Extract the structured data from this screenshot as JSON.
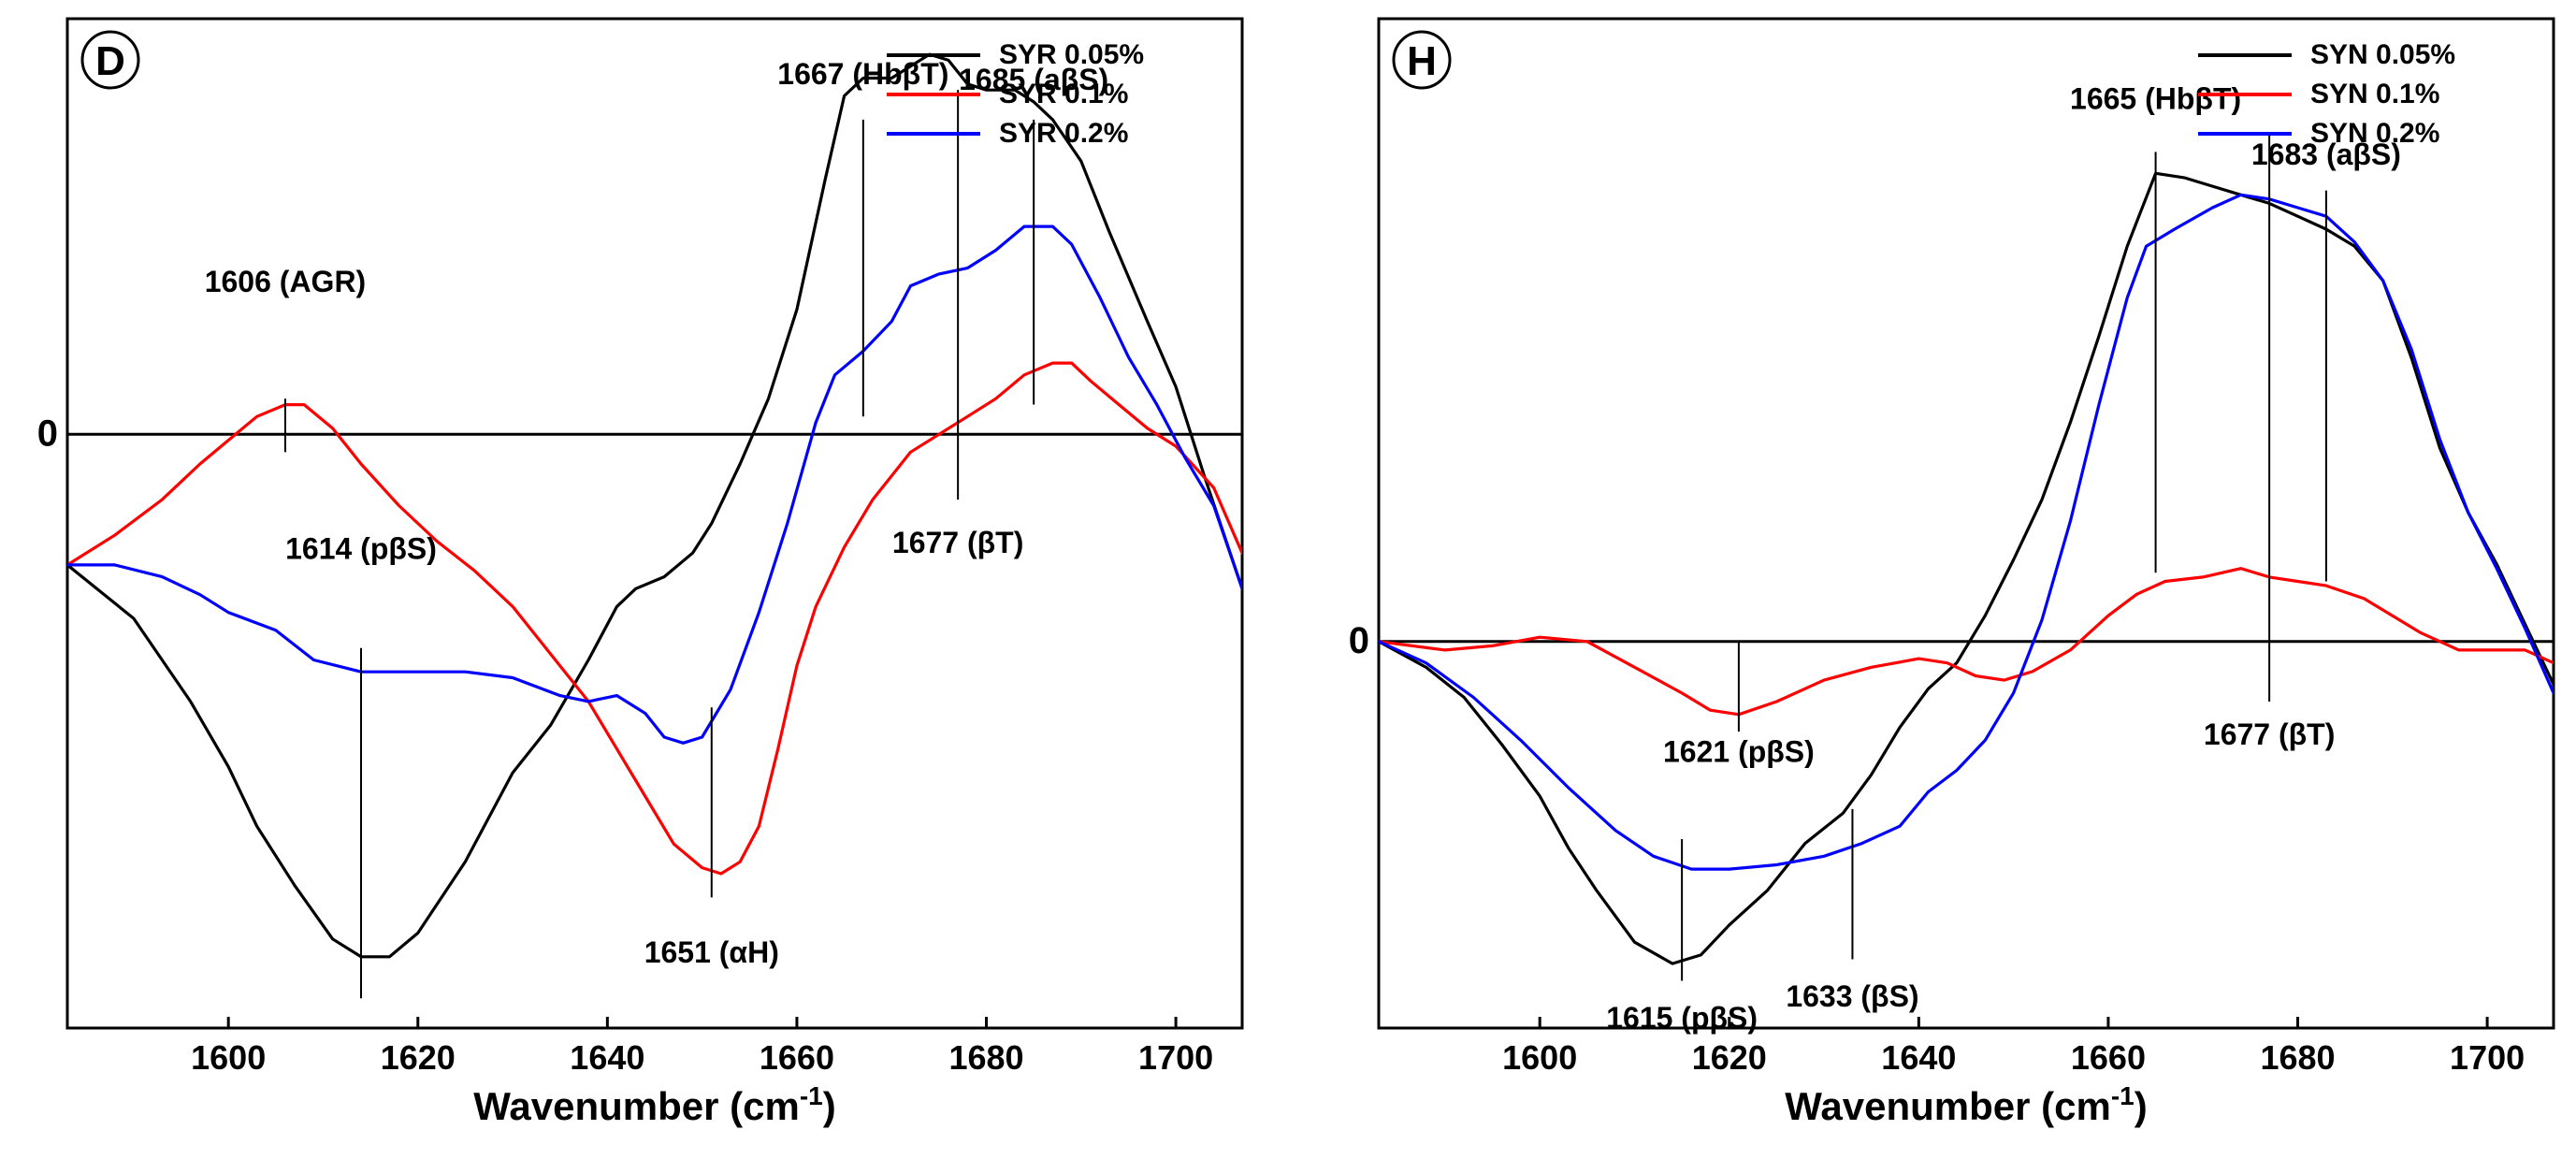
{
  "chart_data": [
    {
      "type": "line",
      "panel_label": "D",
      "xlabel": "Wavenumber (cm",
      "xlabel_sup": "-1",
      "xlabel_close": ")",
      "xlim": [
        1583,
        1707
      ],
      "ylim": [
        -1.0,
        0.7
      ],
      "xticks": [
        1600,
        1620,
        1640,
        1660,
        1680,
        1700
      ],
      "zero_label": "0",
      "legend_position": "top-right",
      "series": [
        {
          "name": "SYR 0.05%",
          "color": "#000000",
          "points": [
            [
              1583,
              -0.22
            ],
            [
              1590,
              -0.31
            ],
            [
              1596,
              -0.45
            ],
            [
              1600,
              -0.56
            ],
            [
              1603,
              -0.66
            ],
            [
              1607,
              -0.76
            ],
            [
              1611,
              -0.85
            ],
            [
              1614,
              -0.88
            ],
            [
              1617,
              -0.88
            ],
            [
              1620,
              -0.84
            ],
            [
              1625,
              -0.72
            ],
            [
              1630,
              -0.57
            ],
            [
              1634,
              -0.49
            ],
            [
              1638,
              -0.38
            ],
            [
              1641,
              -0.29
            ],
            [
              1643,
              -0.26
            ],
            [
              1646,
              -0.24
            ],
            [
              1649,
              -0.2
            ],
            [
              1651,
              -0.15
            ],
            [
              1654,
              -0.05
            ],
            [
              1657,
              0.06
            ],
            [
              1660,
              0.21
            ],
            [
              1663,
              0.43
            ],
            [
              1665,
              0.57
            ],
            [
              1667,
              0.6
            ],
            [
              1670,
              0.6
            ],
            [
              1672,
              0.62
            ],
            [
              1674,
              0.64
            ],
            [
              1676,
              0.63
            ],
            [
              1678,
              0.59
            ],
            [
              1680,
              0.58
            ],
            [
              1683,
              0.58
            ],
            [
              1685,
              0.56
            ],
            [
              1687,
              0.53
            ],
            [
              1690,
              0.46
            ],
            [
              1693,
              0.34
            ],
            [
              1697,
              0.19
            ],
            [
              1700,
              0.08
            ],
            [
              1703,
              -0.07
            ],
            [
              1707,
              -0.26
            ]
          ]
        },
        {
          "name": "SYR 0.1%",
          "color": "#ff0000",
          "points": [
            [
              1583,
              -0.22
            ],
            [
              1588,
              -0.17
            ],
            [
              1593,
              -0.11
            ],
            [
              1597,
              -0.05
            ],
            [
              1600,
              -0.01
            ],
            [
              1603,
              0.03
            ],
            [
              1606,
              0.05
            ],
            [
              1608,
              0.05
            ],
            [
              1611,
              0.01
            ],
            [
              1614,
              -0.05
            ],
            [
              1618,
              -0.12
            ],
            [
              1622,
              -0.18
            ],
            [
              1626,
              -0.23
            ],
            [
              1630,
              -0.29
            ],
            [
              1634,
              -0.37
            ],
            [
              1638,
              -0.45
            ],
            [
              1641,
              -0.53
            ],
            [
              1644,
              -0.61
            ],
            [
              1647,
              -0.69
            ],
            [
              1650,
              -0.73
            ],
            [
              1652,
              -0.74
            ],
            [
              1654,
              -0.72
            ],
            [
              1656,
              -0.66
            ],
            [
              1658,
              -0.53
            ],
            [
              1660,
              -0.39
            ],
            [
              1662,
              -0.29
            ],
            [
              1665,
              -0.19
            ],
            [
              1668,
              -0.11
            ],
            [
              1672,
              -0.03
            ],
            [
              1675,
              0.0
            ],
            [
              1678,
              0.03
            ],
            [
              1681,
              0.06
            ],
            [
              1684,
              0.1
            ],
            [
              1687,
              0.12
            ],
            [
              1689,
              0.12
            ],
            [
              1691,
              0.09
            ],
            [
              1694,
              0.05
            ],
            [
              1697,
              0.01
            ],
            [
              1700,
              -0.02
            ],
            [
              1704,
              -0.09
            ],
            [
              1707,
              -0.2
            ]
          ]
        },
        {
          "name": "SYR 0.2%",
          "color": "#0000ff",
          "points": [
            [
              1583,
              -0.22
            ],
            [
              1588,
              -0.22
            ],
            [
              1593,
              -0.24
            ],
            [
              1597,
              -0.27
            ],
            [
              1600,
              -0.3
            ],
            [
              1605,
              -0.33
            ],
            [
              1609,
              -0.38
            ],
            [
              1614,
              -0.4
            ],
            [
              1620,
              -0.4
            ],
            [
              1625,
              -0.4
            ],
            [
              1630,
              -0.41
            ],
            [
              1635,
              -0.44
            ],
            [
              1638,
              -0.45
            ],
            [
              1641,
              -0.44
            ],
            [
              1644,
              -0.47
            ],
            [
              1646,
              -0.51
            ],
            [
              1648,
              -0.52
            ],
            [
              1650,
              -0.51
            ],
            [
              1653,
              -0.43
            ],
            [
              1656,
              -0.3
            ],
            [
              1659,
              -0.15
            ],
            [
              1662,
              0.02
            ],
            [
              1664,
              0.1
            ],
            [
              1667,
              0.14
            ],
            [
              1670,
              0.19
            ],
            [
              1672,
              0.25
            ],
            [
              1675,
              0.27
            ],
            [
              1678,
              0.28
            ],
            [
              1681,
              0.31
            ],
            [
              1684,
              0.35
            ],
            [
              1687,
              0.35
            ],
            [
              1689,
              0.32
            ],
            [
              1692,
              0.23
            ],
            [
              1695,
              0.13
            ],
            [
              1698,
              0.05
            ],
            [
              1701,
              -0.04
            ],
            [
              1704,
              -0.12
            ],
            [
              1707,
              -0.26
            ]
          ]
        }
      ],
      "annotations": [
        {
          "text": "1606 (AGR)",
          "x": 1606,
          "y_label": 0.24,
          "y1": -0.03,
          "y2": 0.06
        },
        {
          "text": "1614 (pβS)",
          "x": 1614,
          "y_label": -0.21,
          "y1": -0.95,
          "y2": -0.36
        },
        {
          "text": "1651 (αH)",
          "x": 1651,
          "y_label": -0.89,
          "y1": -0.78,
          "y2": -0.46
        },
        {
          "text": "1667 (HbβT)",
          "x": 1667,
          "y_label": 0.59,
          "y1": 0.03,
          "y2": 0.53
        },
        {
          "text": "1677 (βT)",
          "x": 1677,
          "y_label": -0.2,
          "y1": -0.11,
          "y2": 0.58
        },
        {
          "text": "1685 (aβS)",
          "x": 1685,
          "y_label": 0.58,
          "y1": 0.05,
          "y2": 0.53
        }
      ],
      "legend": [
        "SYR 0.05%",
        "SYR 0.1%",
        "SYR 0.2%"
      ]
    },
    {
      "type": "line",
      "panel_label": "H",
      "xlabel": "Wavenumber (cm",
      "xlabel_sup": "-1",
      "xlabel_close": ")",
      "xlim": [
        1583,
        1707
      ],
      "ylim": [
        -0.9,
        1.45
      ],
      "xticks": [
        1600,
        1620,
        1640,
        1660,
        1680,
        1700
      ],
      "zero_label": "0",
      "legend_position": "top-right",
      "series": [
        {
          "name": "SYN 0.05%",
          "color": "#000000",
          "points": [
            [
              1583,
              0.0
            ],
            [
              1588,
              -0.06
            ],
            [
              1592,
              -0.13
            ],
            [
              1596,
              -0.24
            ],
            [
              1600,
              -0.36
            ],
            [
              1603,
              -0.48
            ],
            [
              1606,
              -0.58
            ],
            [
              1610,
              -0.7
            ],
            [
              1614,
              -0.75
            ],
            [
              1617,
              -0.73
            ],
            [
              1620,
              -0.66
            ],
            [
              1624,
              -0.58
            ],
            [
              1628,
              -0.47
            ],
            [
              1632,
              -0.4
            ],
            [
              1635,
              -0.31
            ],
            [
              1638,
              -0.2
            ],
            [
              1641,
              -0.11
            ],
            [
              1644,
              -0.05
            ],
            [
              1647,
              0.06
            ],
            [
              1650,
              0.19
            ],
            [
              1653,
              0.33
            ],
            [
              1656,
              0.51
            ],
            [
              1659,
              0.71
            ],
            [
              1662,
              0.92
            ],
            [
              1665,
              1.09
            ],
            [
              1668,
              1.08
            ],
            [
              1671,
              1.06
            ],
            [
              1674,
              1.04
            ],
            [
              1677,
              1.02
            ],
            [
              1680,
              0.99
            ],
            [
              1683,
              0.96
            ],
            [
              1686,
              0.92
            ],
            [
              1689,
              0.84
            ],
            [
              1692,
              0.66
            ],
            [
              1695,
              0.45
            ],
            [
              1698,
              0.3
            ],
            [
              1701,
              0.18
            ],
            [
              1704,
              0.04
            ],
            [
              1707,
              -0.1
            ]
          ]
        },
        {
          "name": "SYN 0.1%",
          "color": "#ff0000",
          "points": [
            [
              1583,
              0.0
            ],
            [
              1590,
              -0.02
            ],
            [
              1595,
              -0.01
            ],
            [
              1600,
              0.01
            ],
            [
              1605,
              0.0
            ],
            [
              1610,
              -0.06
            ],
            [
              1615,
              -0.12
            ],
            [
              1618,
              -0.16
            ],
            [
              1621,
              -0.17
            ],
            [
              1625,
              -0.14
            ],
            [
              1630,
              -0.09
            ],
            [
              1635,
              -0.06
            ],
            [
              1640,
              -0.04
            ],
            [
              1643,
              -0.05
            ],
            [
              1646,
              -0.08
            ],
            [
              1649,
              -0.09
            ],
            [
              1652,
              -0.07
            ],
            [
              1656,
              -0.02
            ],
            [
              1660,
              0.06
            ],
            [
              1663,
              0.11
            ],
            [
              1666,
              0.14
            ],
            [
              1670,
              0.15
            ],
            [
              1674,
              0.17
            ],
            [
              1677,
              0.15
            ],
            [
              1680,
              0.14
            ],
            [
              1683,
              0.13
            ],
            [
              1687,
              0.1
            ],
            [
              1690,
              0.06
            ],
            [
              1693,
              0.02
            ],
            [
              1697,
              -0.02
            ],
            [
              1701,
              -0.02
            ],
            [
              1704,
              -0.02
            ],
            [
              1707,
              -0.05
            ]
          ]
        },
        {
          "name": "SYN 0.2%",
          "color": "#0000ff",
          "points": [
            [
              1583,
              0.0
            ],
            [
              1588,
              -0.05
            ],
            [
              1593,
              -0.13
            ],
            [
              1598,
              -0.23
            ],
            [
              1603,
              -0.34
            ],
            [
              1608,
              -0.44
            ],
            [
              1612,
              -0.5
            ],
            [
              1616,
              -0.53
            ],
            [
              1620,
              -0.53
            ],
            [
              1625,
              -0.52
            ],
            [
              1630,
              -0.5
            ],
            [
              1634,
              -0.47
            ],
            [
              1638,
              -0.43
            ],
            [
              1641,
              -0.35
            ],
            [
              1644,
              -0.3
            ],
            [
              1647,
              -0.23
            ],
            [
              1650,
              -0.12
            ],
            [
              1653,
              0.05
            ],
            [
              1656,
              0.28
            ],
            [
              1659,
              0.55
            ],
            [
              1662,
              0.8
            ],
            [
              1664,
              0.92
            ],
            [
              1667,
              0.96
            ],
            [
              1671,
              1.01
            ],
            [
              1674,
              1.04
            ],
            [
              1677,
              1.03
            ],
            [
              1680,
              1.01
            ],
            [
              1683,
              0.99
            ],
            [
              1686,
              0.93
            ],
            [
              1689,
              0.84
            ],
            [
              1692,
              0.68
            ],
            [
              1695,
              0.47
            ],
            [
              1698,
              0.3
            ],
            [
              1701,
              0.17
            ],
            [
              1704,
              0.03
            ],
            [
              1707,
              -0.12
            ]
          ]
        }
      ],
      "annotations": [
        {
          "text": "1615 (pβS)",
          "x": 1615,
          "y_label": -0.9,
          "y1": -0.79,
          "y2": -0.46
        },
        {
          "text": "1621 (pβS)",
          "x": 1621,
          "y_label": -0.28,
          "y1": -0.21,
          "y2": 0.0
        },
        {
          "text": "1633 (βS)",
          "x": 1633,
          "y_label": -0.85,
          "y1": -0.74,
          "y2": -0.39
        },
        {
          "text": "1665 (HbβT)",
          "x": 1665,
          "y_label": 1.24,
          "y1": 0.16,
          "y2": 1.14
        },
        {
          "text": "1677 (βT)",
          "x": 1677,
          "y_label": -0.24,
          "y1": -0.14,
          "y2": 1.18
        },
        {
          "text": "1683 (aβS)",
          "x": 1683,
          "y_label": 1.11,
          "y1": 0.14,
          "y2": 1.05
        }
      ],
      "legend": [
        "SYN 0.05%",
        "SYN 0.1%",
        "SYN 0.2%"
      ]
    }
  ]
}
